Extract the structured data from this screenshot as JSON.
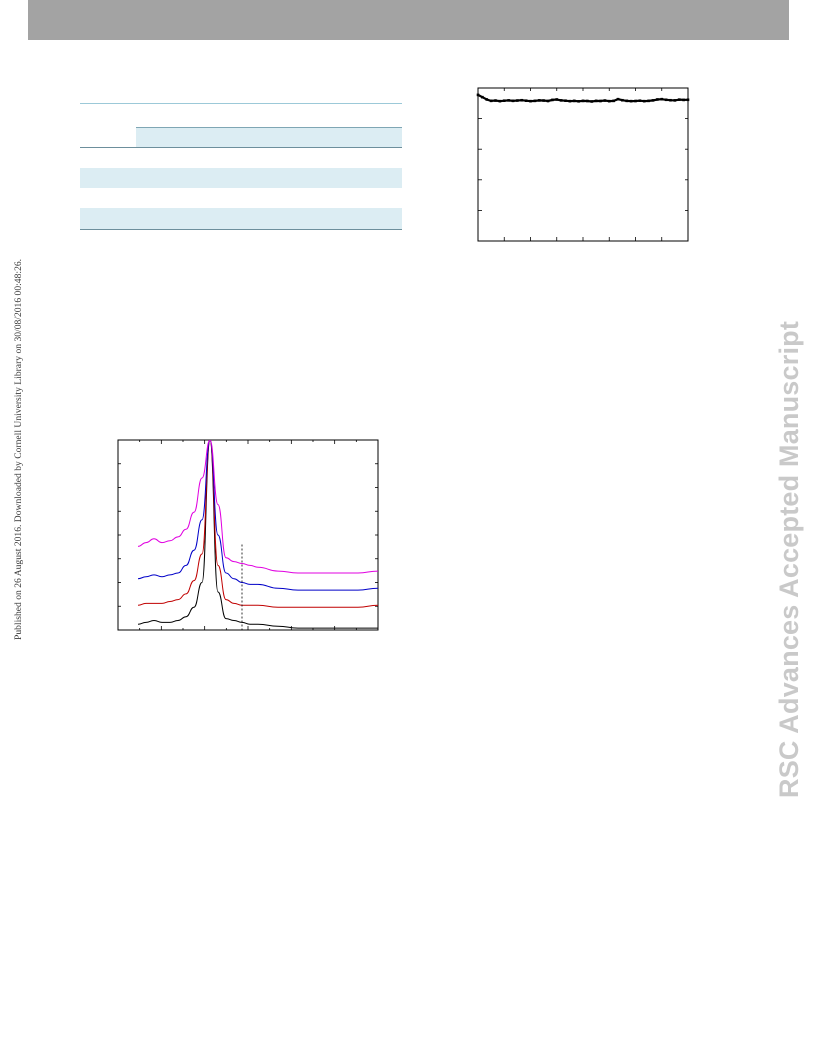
{
  "page": {
    "publication_note": "Published on 26 August 2016. Downloaded by Cornell University Library on 30/08/2016 00:48:26.",
    "watermark": "RSC Advances Accepted Manuscript",
    "colors": {
      "header_bar": "#a3a3a3",
      "table_band": "#dcedf3",
      "watermark": "#c9c9c9"
    }
  },
  "chart_data": [
    {
      "type": "line",
      "description_role": "stability trace (top-right panel)",
      "x": [
        0,
        0.5,
        1,
        1.5,
        2,
        2.5,
        3,
        3.5,
        4,
        4.5,
        5,
        5.5,
        6,
        6.5,
        7,
        7.5,
        8,
        8.5,
        9,
        9.5,
        10,
        10.5,
        11,
        11.5,
        12,
        12.5,
        13,
        13.5,
        14,
        14.5,
        15,
        15.5,
        16,
        16.5,
        17,
        17.5,
        18,
        18.5,
        19,
        19.5,
        20,
        20.5,
        21,
        21.5,
        22,
        22.5,
        23,
        23.5,
        24
      ],
      "series": [
        {
          "color": "#000000",
          "values": [
            95.5,
            94.0,
            92.5,
            91.6,
            91.8,
            91.4,
            91.7,
            91.9,
            91.6,
            91.8,
            92.0,
            91.7,
            91.4,
            91.6,
            91.9,
            91.8,
            91.5,
            92.2,
            92.5,
            91.9,
            91.7,
            91.4,
            91.6,
            91.3,
            91.6,
            91.5,
            91.2,
            91.6,
            91.5,
            91.8,
            91.4,
            91.6,
            92.7,
            92.0,
            91.6,
            91.4,
            91.5,
            91.7,
            91.4,
            91.6,
            91.9,
            92.5,
            92.7,
            92.3,
            92.0,
            91.9,
            92.4,
            92.2,
            92.3
          ]
        }
      ],
      "xlim": [
        0,
        24
      ],
      "ylim": [
        0,
        100
      ],
      "grid": false
    },
    {
      "type": "line",
      "description_role": "stacked spectra (bottom-left panel)",
      "x": [
        10,
        12,
        14,
        16,
        18,
        20,
        22,
        24,
        26,
        28,
        30,
        32,
        34,
        36,
        38,
        40,
        45,
        50,
        55,
        60,
        65,
        70
      ],
      "series": [
        {
          "color": "#000000",
          "values": [
            3,
            4,
            5,
            4,
            4,
            5,
            7,
            12,
            25,
            100,
            20,
            6,
            5,
            4,
            3,
            3,
            2,
            1,
            1,
            1,
            1,
            1
          ]
        },
        {
          "color": "#c00000",
          "values": [
            13,
            14,
            14,
            14,
            15,
            16,
            19,
            26,
            40,
            100,
            34,
            16,
            14,
            13,
            13,
            13,
            12,
            12,
            12,
            12,
            12,
            13
          ]
        },
        {
          "color": "#0000c8",
          "values": [
            27,
            28,
            29,
            28,
            29,
            30,
            34,
            42,
            58,
            100,
            50,
            30,
            27,
            25,
            24,
            24,
            22,
            21,
            21,
            21,
            21,
            22
          ]
        },
        {
          "color": "#e000e0",
          "values": [
            44,
            46,
            48,
            46,
            47,
            49,
            53,
            62,
            80,
            100,
            66,
            38,
            36,
            35,
            34,
            33,
            31,
            30,
            30,
            30,
            30,
            31
          ]
        }
      ],
      "reference_line_x": 36,
      "xlim": [
        5,
        70
      ],
      "ylim": [
        0,
        100
      ],
      "grid": false
    }
  ]
}
